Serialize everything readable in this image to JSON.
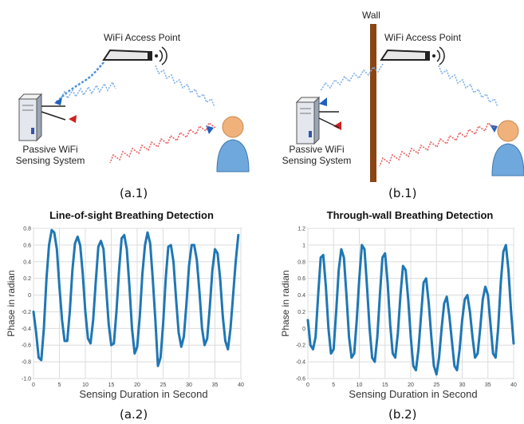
{
  "diagram": {
    "a1": {
      "access_point_label": "WiFi Access Point",
      "sensor_label_line1": "Passive WiFi",
      "sensor_label_line2": "Sensing System",
      "caption": "(a.1)"
    },
    "b1": {
      "wall_label": "Wall",
      "access_point_label": "WiFi Access Point",
      "sensor_label_line1": "Passive WiFi",
      "sensor_label_line2": "Sensing System",
      "caption": "(b.1)"
    },
    "colors": {
      "signal_blue": "#4a90d9",
      "signal_red": "#e03030",
      "wall_brown": "#8b4513",
      "person_blue": "#6fa8dc",
      "person_skin": "#f0b27a"
    },
    "icons": [
      "router-icon",
      "server-icon",
      "person-icon",
      "wall-icon"
    ]
  },
  "chart_data": [
    {
      "type": "line",
      "title": "Line-of-sight Breathing Detection",
      "xlabel": "Sensing Duration in Second",
      "ylabel": "Phase in radian",
      "xlim": [
        0,
        40
      ],
      "ylim": [
        -1.0,
        0.8
      ],
      "xticks": [
        "0",
        "5",
        "10",
        "15",
        "20",
        "25",
        "30",
        "35",
        "40"
      ],
      "yticks": [
        "0.8",
        "0.6",
        "0.4",
        "0.2",
        "0",
        "-0.2",
        "-0.4",
        "-0.6",
        "-0.8",
        "-1.0"
      ],
      "grid": true,
      "color": "#1f77b4",
      "caption": "(a.2)",
      "x": [
        0,
        0.5,
        1.0,
        1.5,
        2.0,
        2.5,
        3.0,
        3.5,
        4.0,
        4.5,
        5.0,
        5.5,
        6.0,
        6.5,
        7.0,
        7.5,
        8.0,
        8.5,
        9.0,
        9.5,
        10.0,
        10.5,
        11.0,
        11.5,
        12.0,
        12.5,
        13.0,
        13.5,
        14.0,
        14.5,
        15.0,
        15.5,
        16.0,
        16.5,
        17.0,
        17.5,
        18.0,
        18.5,
        19.0,
        19.5,
        20.0,
        20.5,
        21.0,
        21.5,
        22.0,
        22.5,
        23.0,
        23.5,
        24.0,
        24.5,
        25.0,
        25.5,
        26.0,
        26.5,
        27.0,
        27.5,
        28.0,
        28.5,
        29.0,
        29.5,
        30.0,
        30.5,
        31.0,
        31.5,
        32.0,
        32.5,
        33.0,
        33.5,
        34.0,
        34.5,
        35.0,
        35.5,
        36.0,
        36.5,
        37.0,
        37.5,
        38.0,
        38.5,
        39.0,
        39.5
      ],
      "values": [
        -0.2,
        -0.45,
        -0.75,
        -0.78,
        -0.4,
        0.2,
        0.6,
        0.78,
        0.75,
        0.55,
        0.1,
        -0.3,
        -0.55,
        -0.55,
        -0.2,
        0.3,
        0.62,
        0.7,
        0.6,
        0.25,
        -0.2,
        -0.52,
        -0.58,
        -0.3,
        0.15,
        0.58,
        0.65,
        0.55,
        0.1,
        -0.35,
        -0.6,
        -0.58,
        -0.2,
        0.3,
        0.68,
        0.72,
        0.55,
        0.1,
        -0.4,
        -0.7,
        -0.62,
        -0.25,
        0.25,
        0.6,
        0.75,
        0.62,
        0.2,
        -0.3,
        -0.85,
        -0.75,
        -0.35,
        0.2,
        0.58,
        0.6,
        0.4,
        -0.05,
        -0.45,
        -0.62,
        -0.5,
        -0.1,
        0.35,
        0.6,
        0.6,
        0.42,
        0.05,
        -0.4,
        -0.6,
        -0.52,
        -0.15,
        0.3,
        0.55,
        0.5,
        0.2,
        -0.25,
        -0.55,
        -0.65,
        -0.4,
        0.0,
        0.4,
        0.72
      ]
    },
    {
      "type": "line",
      "title": "Through-wall Breathing Detection",
      "xlabel": "Sensing Duration in Second",
      "ylabel": "Phase in radian",
      "xlim": [
        0,
        40
      ],
      "ylim": [
        -0.6,
        1.2
      ],
      "xticks": [
        "0",
        "5",
        "10",
        "15",
        "20",
        "25",
        "30",
        "35",
        "40"
      ],
      "yticks": [
        "1.2",
        "1",
        "0.8",
        "0.6",
        "0.4",
        "0.2",
        "0",
        "-0.2",
        "-0.4",
        "-0.6"
      ],
      "grid": true,
      "color": "#1f77b4",
      "caption": "(b.2)",
      "x": [
        0,
        0.5,
        1.0,
        1.5,
        2.0,
        2.5,
        3.0,
        3.5,
        4.0,
        4.5,
        5.0,
        5.5,
        6.0,
        6.5,
        7.0,
        7.5,
        8.0,
        8.5,
        9.0,
        9.5,
        10.0,
        10.5,
        11.0,
        11.5,
        12.0,
        12.5,
        13.0,
        13.5,
        14.0,
        14.5,
        15.0,
        15.5,
        16.0,
        16.5,
        17.0,
        17.5,
        18.0,
        18.5,
        19.0,
        19.5,
        20.0,
        20.5,
        21.0,
        21.5,
        22.0,
        22.5,
        23.0,
        23.5,
        24.0,
        24.5,
        25.0,
        25.5,
        26.0,
        26.5,
        27.0,
        27.5,
        28.0,
        28.5,
        29.0,
        29.5,
        30.0,
        30.5,
        31.0,
        31.5,
        32.0,
        32.5,
        33.0,
        33.5,
        34.0,
        34.5,
        35.0,
        35.5,
        36.0,
        36.5,
        37.0,
        37.5,
        38.0,
        38.5,
        39.0,
        39.5,
        40.0
      ],
      "values": [
        0.1,
        -0.2,
        -0.25,
        -0.1,
        0.4,
        0.85,
        0.88,
        0.5,
        0.0,
        -0.3,
        -0.25,
        0.2,
        0.7,
        0.95,
        0.85,
        0.4,
        -0.1,
        -0.35,
        -0.3,
        0.1,
        0.6,
        1.0,
        0.95,
        0.5,
        0.0,
        -0.35,
        -0.4,
        -0.1,
        0.4,
        0.85,
        0.9,
        0.55,
        0.05,
        -0.3,
        -0.35,
        -0.05,
        0.4,
        0.75,
        0.7,
        0.35,
        -0.1,
        -0.45,
        -0.5,
        -0.25,
        0.15,
        0.55,
        0.6,
        0.3,
        -0.1,
        -0.45,
        -0.55,
        -0.35,
        0.0,
        0.3,
        0.38,
        0.15,
        -0.15,
        -0.45,
        -0.5,
        -0.25,
        0.1,
        0.35,
        0.4,
        0.2,
        -0.1,
        -0.35,
        -0.3,
        0.0,
        0.35,
        0.5,
        0.4,
        0.05,
        -0.3,
        -0.35,
        0.0,
        0.55,
        0.92,
        1.0,
        0.7,
        0.2,
        -0.18
      ]
    }
  ]
}
